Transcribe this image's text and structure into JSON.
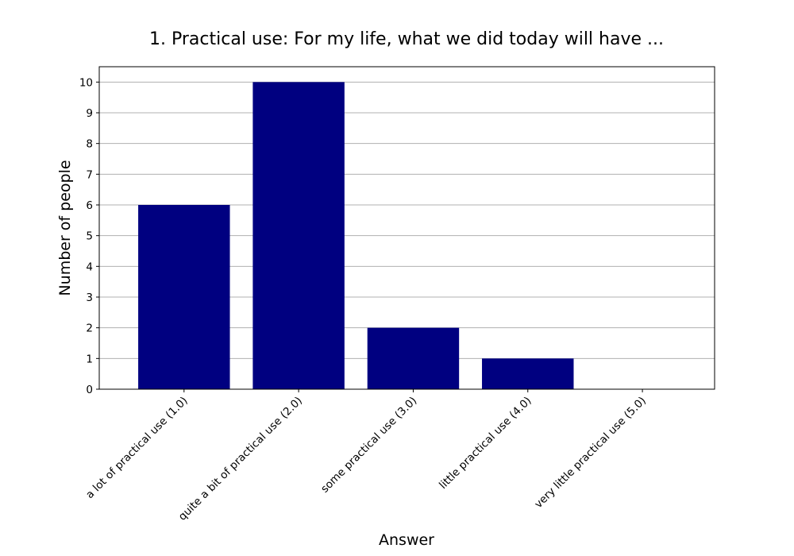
{
  "chart_data": {
    "type": "bar",
    "title": "1. Practical use: For my life, what we did today will have ...",
    "xlabel": "Answer",
    "ylabel": "Number of people",
    "categories": [
      "a lot of practical use (1.0)",
      "quite a bit of practical use (2.0)",
      "some practical use (3.0)",
      "little practical use (4.0)",
      "very little practical use (5.0)"
    ],
    "values": [
      6,
      10,
      2,
      1,
      0
    ],
    "ylim": [
      0,
      10.5
    ],
    "yticks": [
      0,
      1,
      2,
      3,
      4,
      5,
      6,
      7,
      8,
      9,
      10
    ],
    "grid": "y-major",
    "legend": "none",
    "bar_color": "#000080"
  }
}
